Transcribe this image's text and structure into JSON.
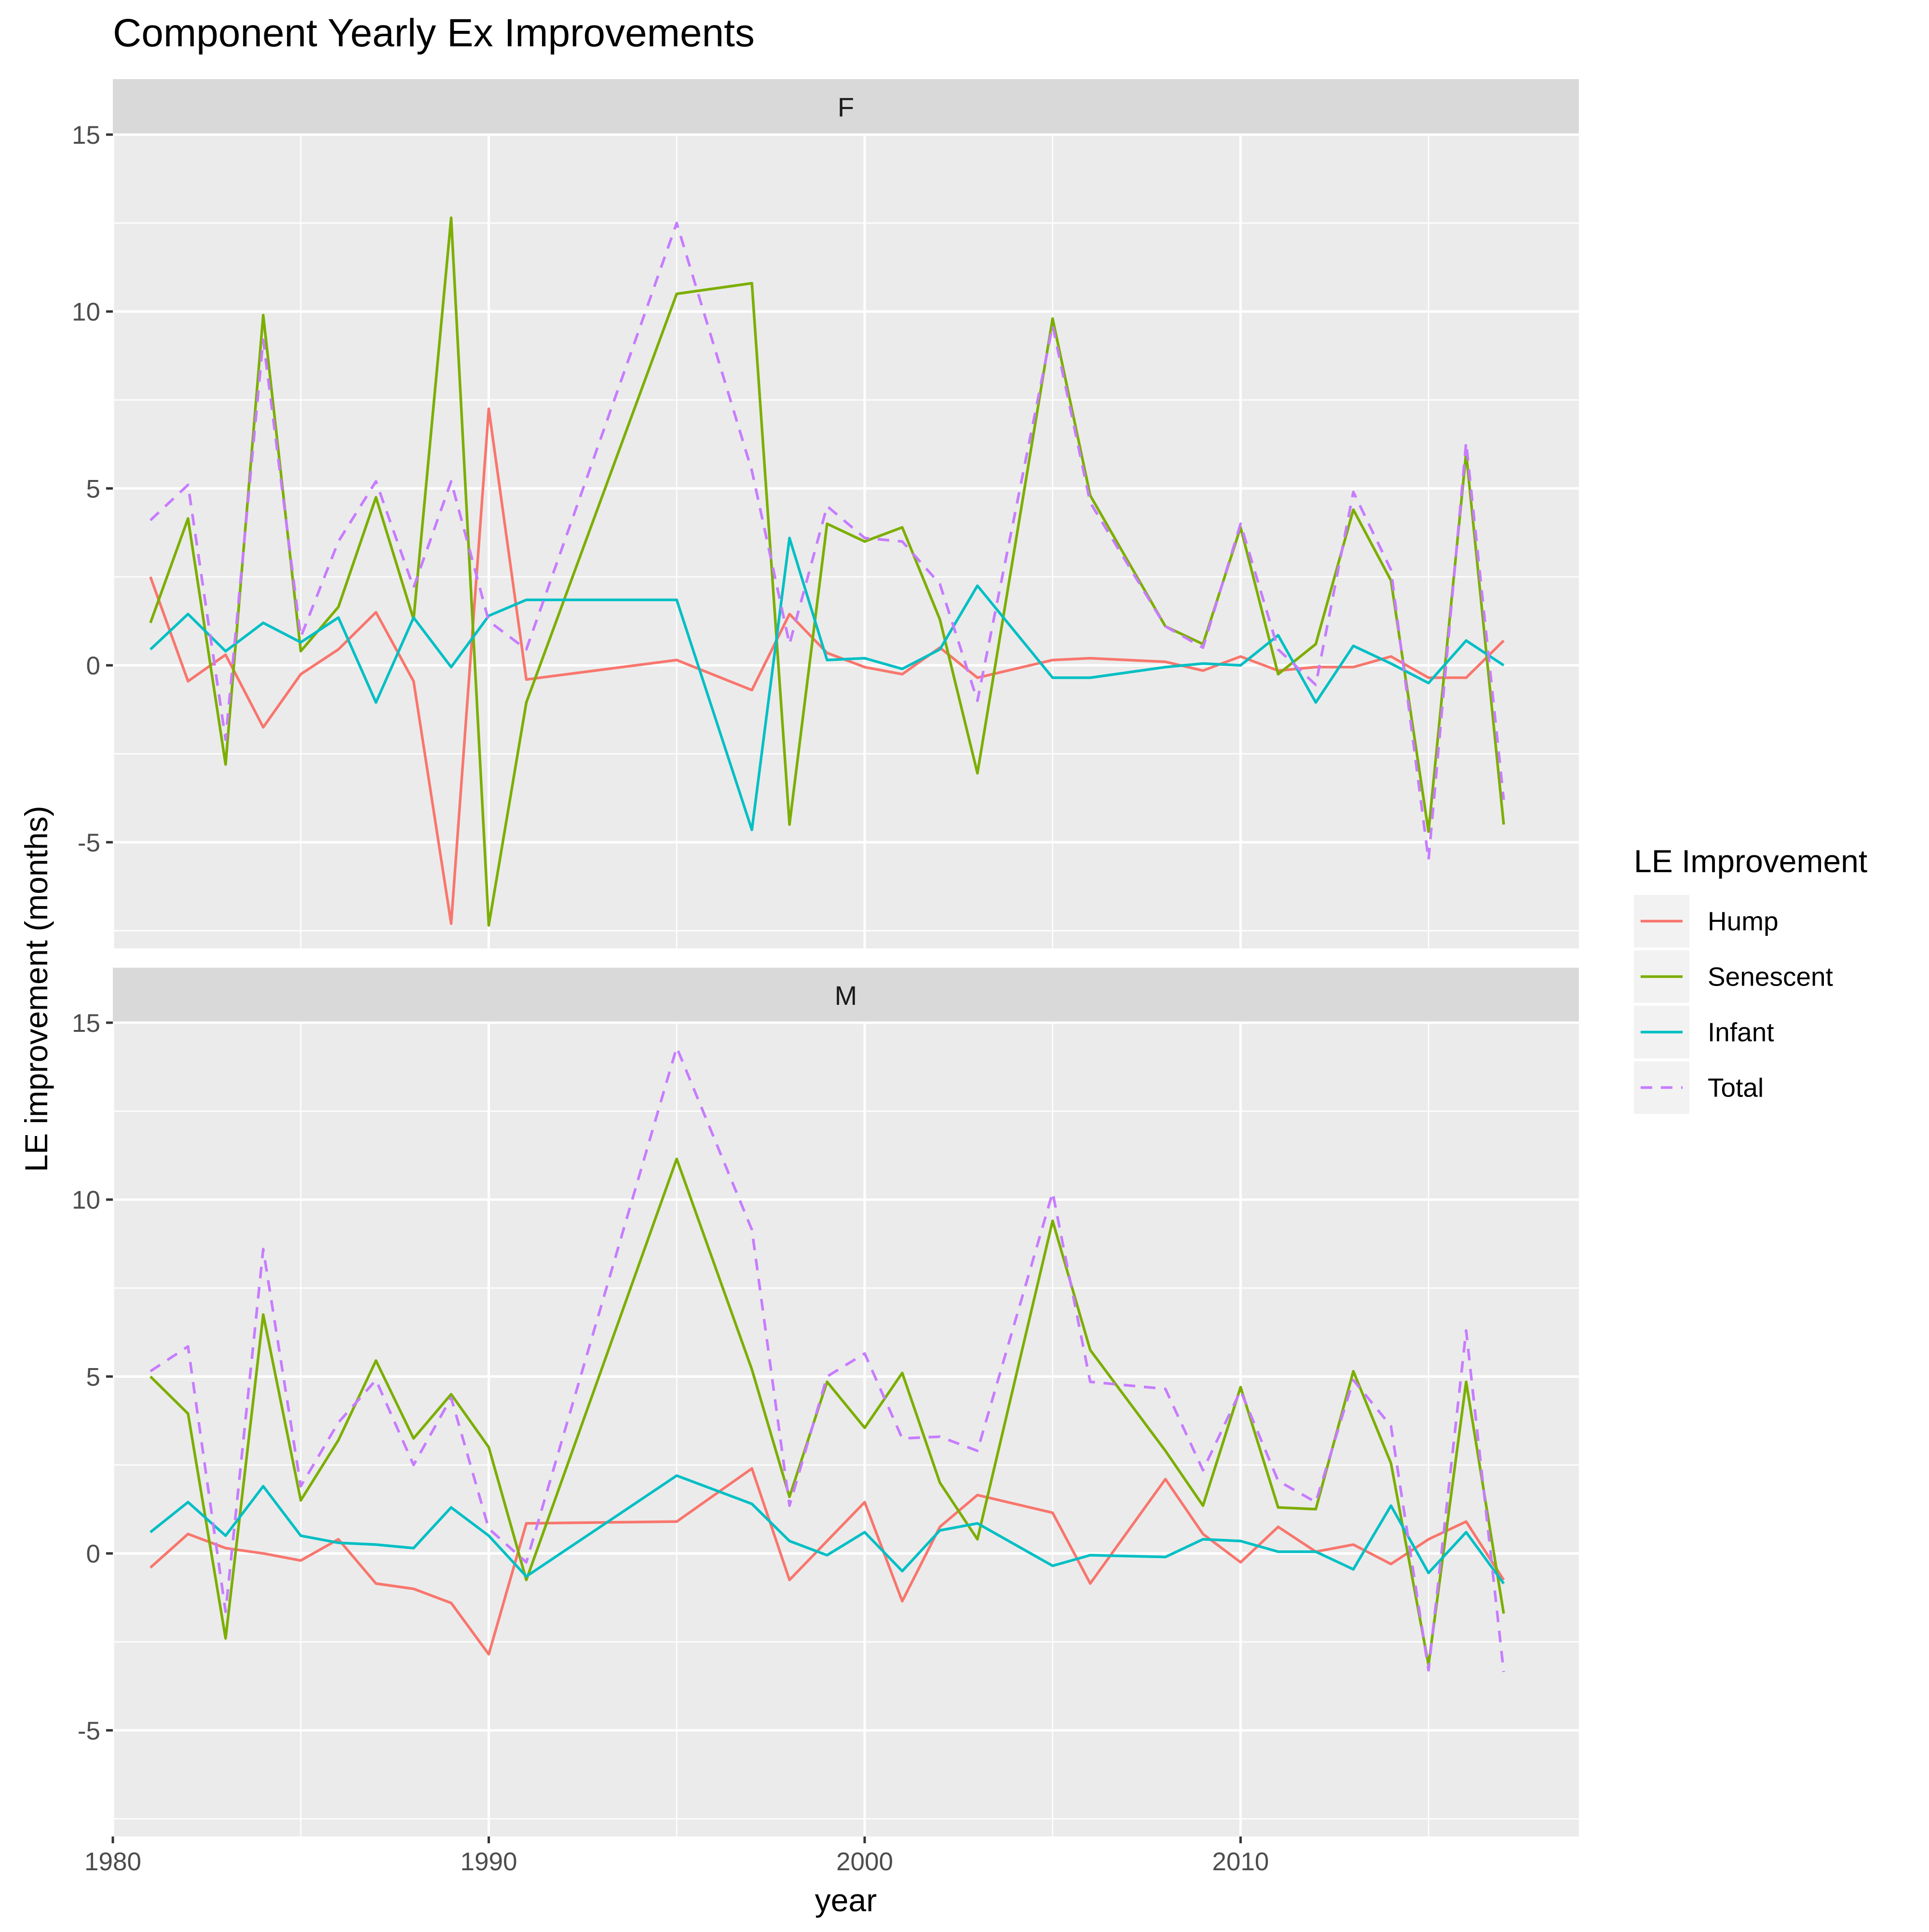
{
  "chart_data": {
    "type": "line",
    "title": "Component Yearly Ex Improvements",
    "xlabel": "year",
    "ylabel": "LE improvement (months)",
    "xlim": [
      1980,
      2019
    ],
    "ylim": [
      -8,
      15
    ],
    "x_ticks": [
      1980,
      1990,
      2000,
      2010
    ],
    "y_ticks": [
      -5,
      0,
      5,
      10,
      15
    ],
    "grid": true,
    "legend": {
      "title": "LE Improvement",
      "position": "right",
      "entries": [
        "Hump",
        "Senescent",
        "Infant",
        "Total"
      ]
    },
    "colors": {
      "Hump": "#F8766D",
      "Senescent": "#7CAE00",
      "Infant": "#00BFC4",
      "Total": "#C77CFF",
      "panel_bg": "#EBEBEB",
      "strip_bg": "#D9D9D9"
    },
    "x": [
      1981,
      1982,
      1983,
      1984,
      1985,
      1986,
      1987,
      1988,
      1989,
      1990,
      1991,
      1995,
      1997,
      1998,
      1999,
      2000,
      2001,
      2002,
      2003,
      2005,
      2006,
      2008,
      2009,
      2010,
      2011,
      2012,
      2013,
      2014,
      2015,
      2016,
      2017
    ],
    "panels": [
      {
        "label": "F",
        "series": [
          {
            "name": "Hump",
            "dash": false,
            "values": [
              2.5,
              -0.45,
              0.3,
              -1.75,
              -0.25,
              0.45,
              1.5,
              -0.45,
              -7.3,
              7.25,
              -0.4,
              0.15,
              -0.7,
              1.45,
              0.35,
              -0.05,
              -0.25,
              0.5,
              -0.35,
              0.15,
              0.2,
              0.1,
              -0.15,
              0.25,
              -0.15,
              -0.05,
              -0.05,
              0.25,
              -0.35,
              -0.35,
              0.7
            ]
          },
          {
            "name": "Senescent",
            "dash": false,
            "values": [
              1.2,
              4.15,
              -2.8,
              9.9,
              0.4,
              1.65,
              4.75,
              1.3,
              12.65,
              -7.35,
              -1.05,
              10.5,
              10.8,
              -4.5,
              4.0,
              3.5,
              3.9,
              1.3,
              -3.05,
              9.8,
              4.8,
              1.1,
              0.6,
              3.9,
              -0.25,
              0.6,
              4.4,
              2.4,
              -4.7,
              6.0,
              -4.5
            ]
          },
          {
            "name": "Infant",
            "dash": false,
            "values": [
              0.45,
              1.45,
              0.4,
              1.2,
              0.65,
              1.35,
              -1.05,
              1.35,
              -0.05,
              1.4,
              1.85,
              1.85,
              -4.65,
              3.6,
              0.15,
              0.2,
              -0.1,
              0.45,
              2.25,
              -0.35,
              -0.35,
              -0.05,
              0.05,
              0.0,
              0.85,
              -1.05,
              0.55,
              0.05,
              -0.5,
              0.7,
              0.0
            ]
          },
          {
            "name": "Total",
            "dash": true,
            "values": [
              4.1,
              5.1,
              -2.1,
              9.2,
              0.8,
              3.5,
              5.2,
              2.2,
              5.2,
              1.25,
              0.45,
              12.5,
              5.5,
              0.6,
              4.5,
              3.6,
              3.5,
              2.3,
              -1.0,
              9.6,
              4.6,
              1.1,
              0.5,
              4.0,
              0.45,
              -0.55,
              4.9,
              2.7,
              -5.5,
              6.3,
              -3.8
            ]
          }
        ]
      },
      {
        "label": "M",
        "series": [
          {
            "name": "Hump",
            "dash": false,
            "values": [
              -0.4,
              0.55,
              0.15,
              0.0,
              -0.2,
              0.4,
              -0.85,
              -1.0,
              -1.4,
              -2.85,
              0.85,
              0.9,
              2.4,
              -0.75,
              0.35,
              1.45,
              -1.35,
              0.75,
              1.65,
              1.15,
              -0.85,
              2.1,
              0.55,
              -0.25,
              0.75,
              0.05,
              0.25,
              -0.3,
              0.4,
              0.9,
              -0.75
            ]
          },
          {
            "name": "Senescent",
            "dash": false,
            "values": [
              5.0,
              3.95,
              -2.4,
              6.75,
              1.5,
              3.2,
              5.45,
              3.25,
              4.5,
              3.0,
              -0.75,
              11.15,
              5.2,
              1.6,
              4.85,
              3.55,
              5.1,
              2.0,
              0.4,
              9.4,
              5.75,
              2.9,
              1.35,
              4.7,
              1.3,
              1.25,
              5.15,
              2.55,
              -3.15,
              4.85,
              -1.7
            ]
          },
          {
            "name": "Infant",
            "dash": false,
            "values": [
              0.6,
              1.45,
              0.5,
              1.9,
              0.5,
              0.3,
              0.25,
              0.15,
              1.3,
              0.5,
              -0.65,
              2.2,
              1.4,
              0.35,
              -0.05,
              0.6,
              -0.5,
              0.65,
              0.85,
              -0.35,
              -0.05,
              -0.1,
              0.4,
              0.35,
              0.05,
              0.05,
              -0.45,
              1.35,
              -0.55,
              0.6,
              -0.85
            ]
          },
          {
            "name": "Total",
            "dash": true,
            "values": [
              5.15,
              5.85,
              -1.65,
              8.6,
              1.9,
              3.7,
              4.9,
              2.5,
              4.4,
              0.7,
              -0.25,
              14.3,
              9.15,
              1.35,
              5.0,
              5.65,
              3.25,
              3.3,
              2.9,
              10.2,
              4.85,
              4.65,
              2.35,
              4.6,
              2.05,
              1.45,
              4.9,
              3.6,
              -3.3,
              6.3,
              -3.35
            ]
          }
        ]
      }
    ]
  }
}
